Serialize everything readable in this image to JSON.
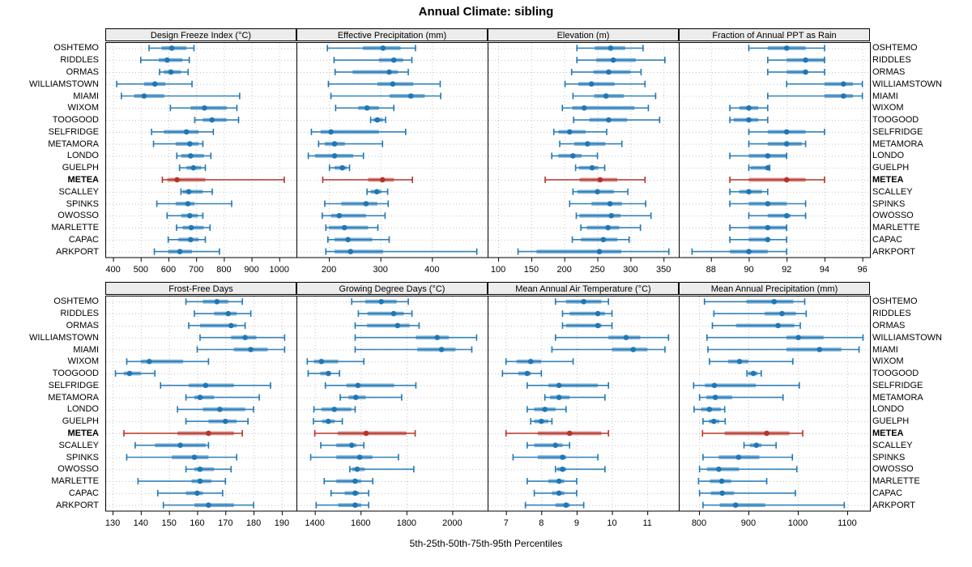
{
  "title": "Annual Climate: sibling",
  "caption": "5th-25th-50th-75th-95th Percentiles",
  "colors": {
    "series": "#1f77b4",
    "highlight": "#b5332a",
    "strip_bg": "#ececec",
    "grid": "#c3c3c3",
    "border": "#000000"
  },
  "chart_data": {
    "type": "interval-dotplot",
    "percentiles": [
      5,
      25,
      50,
      75,
      95
    ],
    "legend_note": "dot = median, thick bar = 25th-75th, thin line = 5th-95th",
    "highlight_site": "METEA",
    "sites": [
      "OSHTEMO",
      "RIDDLES",
      "ORMAS",
      "WILLIAMSTOWN",
      "MIAMI",
      "WIXOM",
      "TOOGOOD",
      "SELFRIDGE",
      "METAMORA",
      "LONDO",
      "GUELPH",
      "METEA",
      "SCALLEY",
      "SPINKS",
      "OWOSSO",
      "MARLETTE",
      "CAPAC",
      "ARKPORT"
    ],
    "panels": [
      {
        "title": "Design Freeze Index (°C)",
        "grid_row": 0,
        "grid_col": 0,
        "ticks": [
          400,
          500,
          600,
          700,
          800,
          900,
          1000
        ],
        "domain": [
          372,
          1062
        ],
        "values": [
          [
            530,
            575,
            612,
            665,
            692
          ],
          [
            500,
            565,
            595,
            650,
            675
          ],
          [
            568,
            583,
            609,
            645,
            671
          ],
          [
            413,
            512,
            551,
            589,
            685
          ],
          [
            430,
            476,
            512,
            585,
            857
          ],
          [
            607,
            680,
            730,
            810,
            847
          ],
          [
            695,
            724,
            757,
            810,
            853
          ],
          [
            539,
            583,
            665,
            709,
            762
          ],
          [
            546,
            626,
            677,
            709,
            724
          ],
          [
            630,
            646,
            680,
            728,
            753
          ],
          [
            640,
            665,
            690,
            718,
            733
          ],
          [
            578,
            596,
            631,
            733,
            1018
          ],
          [
            645,
            651,
            673,
            724,
            758
          ],
          [
            558,
            626,
            670,
            694,
            828
          ],
          [
            595,
            646,
            677,
            706,
            724
          ],
          [
            629,
            651,
            682,
            727,
            750
          ],
          [
            599,
            636,
            680,
            709,
            733
          ],
          [
            549,
            599,
            641,
            685,
            784
          ]
        ]
      },
      {
        "title": "Effective Precipitation (mm)",
        "grid_row": 0,
        "grid_col": 1,
        "ticks": [
          200,
          300,
          400
        ],
        "domain": [
          137,
          508
        ],
        "values": [
          [
            197,
            266,
            305,
            339,
            368
          ],
          [
            210,
            297,
            326,
            344,
            361
          ],
          [
            212,
            246,
            317,
            334,
            354
          ],
          [
            199,
            294,
            324,
            364,
            416
          ],
          [
            204,
            318,
            359,
            386,
            417
          ],
          [
            213,
            257,
            274,
            297,
            326
          ],
          [
            281,
            286,
            294,
            305,
            310
          ],
          [
            166,
            184,
            204,
            297,
            349
          ],
          [
            180,
            192,
            211,
            231,
            304
          ],
          [
            160,
            173,
            211,
            247,
            267
          ],
          [
            201,
            211,
            226,
            234,
            240
          ],
          [
            188,
            276,
            304,
            326,
            362
          ],
          [
            274,
            281,
            293,
            302,
            314
          ],
          [
            192,
            224,
            272,
            294,
            315
          ],
          [
            187,
            204,
            220,
            272,
            309
          ],
          [
            194,
            200,
            230,
            276,
            295
          ],
          [
            198,
            211,
            237,
            284,
            317
          ],
          [
            194,
            211,
            242,
            305,
            487
          ]
        ]
      },
      {
        "title": "Elevation (m)",
        "grid_row": 0,
        "grid_col": 2,
        "ticks": [
          100,
          150,
          200,
          250,
          300,
          350
        ],
        "domain": [
          84,
          373
        ],
        "values": [
          [
            219,
            246,
            270,
            292,
            319
          ],
          [
            219,
            248,
            274,
            308,
            352
          ],
          [
            211,
            244,
            267,
            300,
            316
          ],
          [
            201,
            221,
            241,
            276,
            322
          ],
          [
            213,
            245,
            263,
            290,
            338
          ],
          [
            197,
            212,
            230,
            306,
            327
          ],
          [
            214,
            238,
            267,
            295,
            344
          ],
          [
            184,
            191,
            208,
            232,
            264
          ],
          [
            193,
            215,
            235,
            262,
            287
          ],
          [
            181,
            191,
            213,
            226,
            250
          ],
          [
            217,
            222,
            242,
            251,
            261
          ],
          [
            171,
            223,
            254,
            280,
            322
          ],
          [
            213,
            220,
            250,
            275,
            296
          ],
          [
            208,
            241,
            269,
            287,
            323
          ],
          [
            218,
            223,
            271,
            285,
            331
          ],
          [
            225,
            234,
            266,
            283,
            315
          ],
          [
            212,
            225,
            259,
            280,
            298
          ],
          [
            130,
            158,
            253,
            286,
            358
          ]
        ]
      },
      {
        "title": "Fraction of Annual PPT as Rain",
        "grid_row": 0,
        "grid_col": 3,
        "ticks": [
          88,
          90,
          92,
          94,
          96
        ],
        "domain": [
          86.3,
          96.4
        ],
        "values": [
          [
            90,
            91,
            92,
            93,
            94
          ],
          [
            91,
            92,
            93,
            94,
            94
          ],
          [
            91,
            92,
            93,
            93.1,
            94
          ],
          [
            92,
            94,
            95,
            95.5,
            96
          ],
          [
            91,
            94,
            95,
            95.5,
            96
          ],
          [
            89,
            89.5,
            90,
            90.5,
            91
          ],
          [
            89,
            89.2,
            90,
            90.5,
            91
          ],
          [
            90,
            91,
            92,
            93,
            94
          ],
          [
            90,
            91,
            92,
            92.8,
            93
          ],
          [
            89,
            90,
            91,
            92,
            92
          ],
          [
            90,
            90.1,
            91,
            91,
            91.1
          ],
          [
            89,
            90,
            92,
            93,
            94
          ],
          [
            89,
            89.5,
            90,
            90.7,
            91
          ],
          [
            89,
            90,
            91,
            92,
            93
          ],
          [
            90,
            91,
            92,
            92.2,
            93
          ],
          [
            89,
            90,
            91,
            92,
            92
          ],
          [
            89,
            90,
            91,
            91.1,
            92
          ],
          [
            87,
            89,
            90,
            91,
            92
          ]
        ]
      },
      {
        "title": "Frost-Free Days",
        "grid_row": 1,
        "grid_col": 0,
        "ticks": [
          130,
          140,
          150,
          160,
          170,
          180,
          190
        ],
        "domain": [
          127.4,
          195.2
        ],
        "values": [
          [
            156,
            162,
            167,
            171,
            176
          ],
          [
            159,
            166,
            171,
            174,
            179
          ],
          [
            157,
            161,
            172,
            174,
            177
          ],
          [
            161,
            172,
            177,
            181,
            191
          ],
          [
            160,
            173,
            179,
            185,
            191
          ],
          [
            135,
            140,
            143,
            155,
            164
          ],
          [
            131,
            134,
            136,
            140,
            145
          ],
          [
            147,
            157,
            163,
            173,
            186
          ],
          [
            156,
            159,
            161,
            166,
            182
          ],
          [
            153,
            162,
            168,
            177,
            180
          ],
          [
            156,
            164,
            170,
            174,
            178
          ],
          [
            134,
            153,
            164,
            173,
            176
          ],
          [
            138,
            145,
            154,
            163,
            164
          ],
          [
            135,
            151,
            159,
            164,
            174
          ],
          [
            156,
            159,
            161,
            166,
            172
          ],
          [
            139,
            158,
            161,
            165,
            170
          ],
          [
            146,
            156,
            160,
            162,
            169
          ],
          [
            148,
            159,
            164,
            173,
            180
          ]
        ]
      },
      {
        "title": "Growing Degree Days (°C)",
        "grid_row": 1,
        "grid_col": 1,
        "ticks": [
          1400,
          1600,
          1800,
          2000
        ],
        "domain": [
          1320,
          2154
        ],
        "values": [
          [
            1561,
            1620,
            1690,
            1757,
            1808
          ],
          [
            1590,
            1630,
            1744,
            1788,
            1824
          ],
          [
            1576,
            1628,
            1761,
            1814,
            1855
          ],
          [
            1576,
            1841,
            1934,
            1985,
            2106
          ],
          [
            1576,
            1847,
            1953,
            2014,
            2085
          ],
          [
            1367,
            1396,
            1429,
            1502,
            1614
          ],
          [
            1371,
            1424,
            1459,
            1471,
            1508
          ],
          [
            1446,
            1538,
            1588,
            1746,
            1841
          ],
          [
            1511,
            1547,
            1579,
            1622,
            1779
          ],
          [
            1396,
            1429,
            1485,
            1559,
            1576
          ],
          [
            1394,
            1432,
            1459,
            1487,
            1520
          ],
          [
            1400,
            1500,
            1624,
            1800,
            1838
          ],
          [
            1426,
            1494,
            1561,
            1581,
            1614
          ],
          [
            1382,
            1494,
            1596,
            1652,
            1765
          ],
          [
            1553,
            1562,
            1585,
            1618,
            1832
          ],
          [
            1441,
            1494,
            1576,
            1602,
            1653
          ],
          [
            1471,
            1530,
            1576,
            1593,
            1635
          ],
          [
            1406,
            1502,
            1576,
            1602,
            1635
          ]
        ]
      },
      {
        "title": "Mean Annual Air Temperature (°C)",
        "grid_row": 1,
        "grid_col": 2,
        "ticks": [
          7,
          8,
          9,
          10,
          11
        ],
        "domain": [
          6.48,
          11.89
        ],
        "values": [
          [
            8.4,
            8.7,
            9.2,
            9.7,
            9.9
          ],
          [
            8.6,
            8.8,
            9.6,
            9.8,
            10.0
          ],
          [
            8.6,
            8.7,
            9.6,
            9.7,
            10.0
          ],
          [
            8.4,
            9.9,
            10.4,
            10.8,
            11.6
          ],
          [
            8.3,
            10.0,
            10.6,
            11.0,
            11.5
          ],
          [
            7.0,
            7.3,
            7.7,
            8.0,
            8.9
          ],
          [
            6.9,
            7.35,
            7.6,
            7.7,
            8.0
          ],
          [
            7.6,
            8.2,
            8.5,
            9.6,
            9.9
          ],
          [
            8.1,
            8.25,
            8.5,
            8.8,
            9.8
          ],
          [
            7.6,
            7.8,
            8.1,
            8.4,
            8.7
          ],
          [
            7.7,
            7.8,
            8.0,
            8.2,
            8.3
          ],
          [
            7.0,
            7.9,
            8.8,
            9.7,
            9.9
          ],
          [
            7.6,
            7.8,
            8.4,
            8.6,
            8.8
          ],
          [
            7.2,
            7.9,
            8.6,
            8.7,
            9.6
          ],
          [
            8.4,
            8.45,
            8.6,
            8.7,
            9.8
          ],
          [
            7.6,
            8.2,
            8.5,
            8.65,
            9.0
          ],
          [
            7.8,
            8.3,
            8.5,
            8.65,
            9.0
          ],
          [
            7.55,
            8.4,
            8.7,
            8.8,
            9.2
          ]
        ]
      },
      {
        "title": "Mean Annual Precipitation (mm)",
        "grid_row": 1,
        "grid_col": 3,
        "ticks": [
          800,
          900,
          1000,
          1100
        ],
        "domain": [
          759,
          1146
        ],
        "values": [
          [
            811,
            896,
            952,
            991,
            1014
          ],
          [
            830,
            933,
            968,
            996,
            1017
          ],
          [
            827,
            875,
            960,
            993,
            1005
          ],
          [
            816,
            977,
            1001,
            1052,
            1132
          ],
          [
            818,
            977,
            1044,
            1088,
            1124
          ],
          [
            821,
            859,
            882,
            900,
            990
          ],
          [
            897,
            900,
            910,
            918,
            926
          ],
          [
            789,
            812,
            831,
            915,
            1003
          ],
          [
            801,
            815,
            833,
            867,
            970
          ],
          [
            790,
            804,
            821,
            844,
            852
          ],
          [
            808,
            820,
            830,
            841,
            853
          ],
          [
            807,
            852,
            937,
            983,
            1010
          ],
          [
            891,
            903,
            916,
            926,
            956
          ],
          [
            808,
            840,
            880,
            922,
            989
          ],
          [
            801,
            816,
            840,
            881,
            998
          ],
          [
            799,
            822,
            846,
            865,
            937
          ],
          [
            801,
            824,
            847,
            871,
            995
          ],
          [
            808,
            842,
            874,
            934,
            1094
          ]
        ]
      }
    ]
  }
}
